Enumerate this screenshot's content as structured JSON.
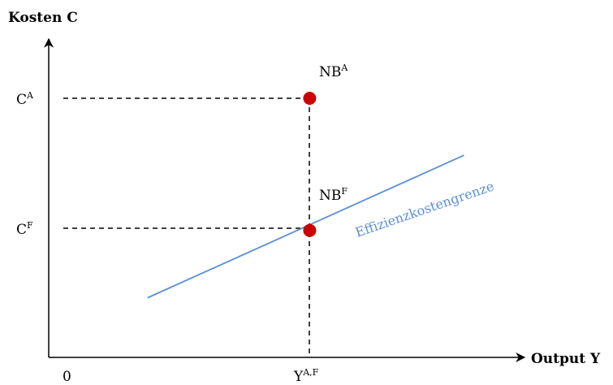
{
  "axes": {
    "y_title": "Kosten C",
    "x_title": "Output Y",
    "origin": "0"
  },
  "labels": {
    "c_a": {
      "base": "C",
      "sup": "A"
    },
    "c_f": {
      "base": "C",
      "sup": "F"
    },
    "y_af": {
      "base": "Y",
      "sup": "A,F"
    },
    "nb_a": {
      "base": "NB",
      "sup": "A"
    },
    "nb_f": {
      "base": "NB",
      "sup": "F"
    }
  },
  "frontier": {
    "label": "Effizienzkostengrenze",
    "color": "#5b8fd6"
  },
  "point_color": "#cc0000",
  "chart_data": {
    "type": "line",
    "series": [
      {
        "name": "Effizienzkostengrenze",
        "x": [
          0.25,
          1.05
        ],
        "y": [
          0.23,
          0.78
        ]
      }
    ],
    "points": [
      {
        "label": "NB^A",
        "x": 0.66,
        "y": 1.0
      },
      {
        "label": "NB^F",
        "x": 0.66,
        "y": 0.49
      }
    ],
    "xlim": [
      0,
      1.2
    ],
    "ylim": [
      0,
      1.2
    ],
    "grid": false
  }
}
